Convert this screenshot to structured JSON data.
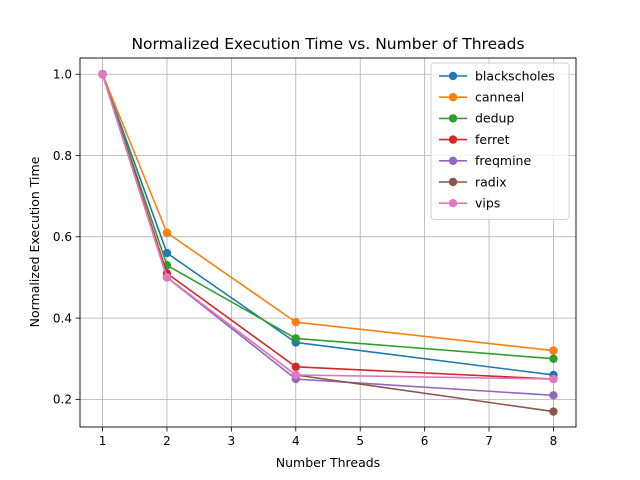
{
  "chart_data": {
    "type": "line",
    "title": "Normalized Execution Time vs. Number of Threads",
    "xlabel": "Number Threads",
    "ylabel": "Normalized Execution Time",
    "x": [
      1,
      2,
      4,
      8
    ],
    "xlim": [
      0.65,
      8.35
    ],
    "ylim": [
      0.132,
      1.04
    ],
    "xticks": [
      1,
      2,
      3,
      4,
      5,
      6,
      7,
      8
    ],
    "yticks": [
      0.2,
      0.4,
      0.6,
      0.8,
      1.0
    ],
    "ytick_labels": [
      "0.2",
      "0.4",
      "0.6",
      "0.8",
      "1.0"
    ],
    "grid": true,
    "legend_position": "top-right",
    "series": [
      {
        "name": "blackscholes",
        "color": "#1f77b4",
        "values": [
          1.0,
          0.56,
          0.34,
          0.26
        ]
      },
      {
        "name": "canneal",
        "color": "#ff7f0e",
        "values": [
          1.0,
          0.61,
          0.39,
          0.32
        ]
      },
      {
        "name": "dedup",
        "color": "#2ca02c",
        "values": [
          1.0,
          0.53,
          0.35,
          0.3
        ]
      },
      {
        "name": "ferret",
        "color": "#d62728",
        "values": [
          1.0,
          0.51,
          0.28,
          0.25
        ]
      },
      {
        "name": "freqmine",
        "color": "#9467bd",
        "values": [
          1.0,
          0.5,
          0.25,
          0.21
        ]
      },
      {
        "name": "radix",
        "color": "#8c564b",
        "values": [
          1.0,
          0.5,
          0.26,
          0.17
        ]
      },
      {
        "name": "vips",
        "color": "#e377c2",
        "values": [
          1.0,
          0.5,
          0.26,
          0.25
        ]
      }
    ]
  }
}
